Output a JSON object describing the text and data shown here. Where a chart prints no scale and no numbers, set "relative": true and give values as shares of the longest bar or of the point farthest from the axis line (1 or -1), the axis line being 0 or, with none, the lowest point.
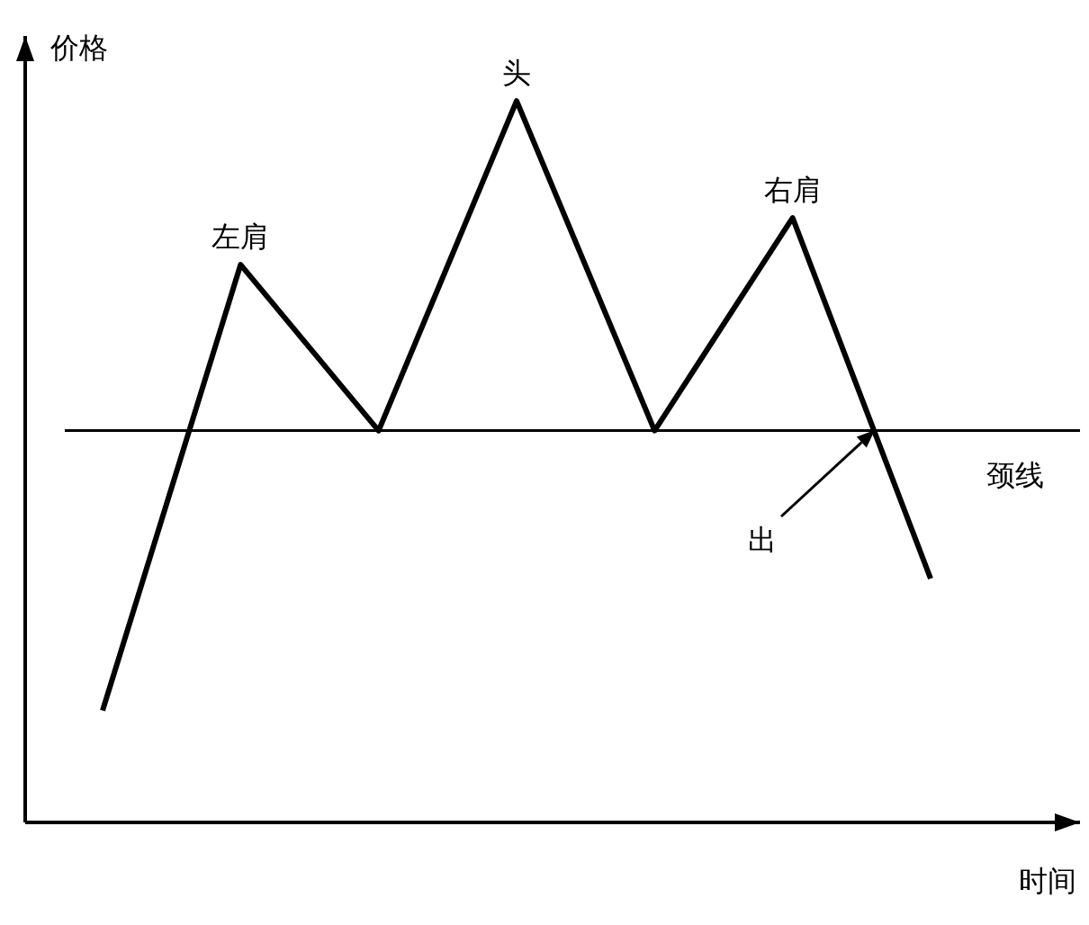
{
  "chart_data": {
    "type": "line",
    "relative": true,
    "xlabel": "时间",
    "ylabel": "价格",
    "categories": [
      null,
      null,
      null,
      null,
      null,
      null,
      null
    ],
    "series": [
      {
        "color": "#000000",
        "values": [
          0.155,
          0.773,
          0.543,
          1,
          0.543,
          0.838,
          0.338
        ]
      }
    ],
    "ref_lines": [
      {
        "axis": "y",
        "value": 0.543,
        "label": "颈线",
        "color": "#000000"
      }
    ],
    "annotations": [
      {
        "text": "左肩",
        "y": 0.773
      },
      {
        "text": "头",
        "y": 1
      },
      {
        "text": "右肩",
        "y": 0.838
      },
      "出"
    ],
    "marker": "none",
    "line_style": "solid"
  }
}
